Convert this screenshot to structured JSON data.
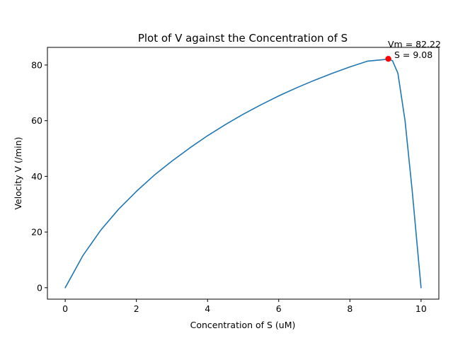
{
  "chart_data": {
    "type": "line",
    "title": "Plot of V against the Concentration of S",
    "xlabel": "Concentration of S (uM)",
    "ylabel": "Velocity V (/min)",
    "xlim": [
      -0.5,
      10.5
    ],
    "ylim": [
      -4.11,
      86.33
    ],
    "xticks": [
      0,
      2,
      4,
      6,
      8,
      10
    ],
    "yticks": [
      0,
      20,
      40,
      60,
      80
    ],
    "grid": false,
    "legend": "none",
    "series": [
      {
        "color": "#1f77b4",
        "x": [
          0,
          0.5,
          1,
          1.5,
          2,
          2.5,
          3,
          3.5,
          4,
          4.5,
          5,
          5.5,
          6,
          6.5,
          7,
          7.5,
          8,
          8.5,
          9,
          9.08,
          9.2,
          9.35,
          9.55,
          9.75,
          10
        ],
        "y": [
          0,
          11.6,
          20.7,
          28.2,
          34.6,
          40.4,
          45.5,
          50.2,
          54.6,
          58.6,
          62.3,
          65.7,
          68.9,
          71.8,
          74.5,
          77.0,
          79.3,
          81.4,
          82.0,
          82.22,
          81.5,
          77.0,
          60.0,
          35.0,
          0
        ]
      }
    ],
    "marker": {
      "x": 9.08,
      "y": 82.22,
      "color": "#ff0000",
      "label_line1": "Vm = 82.22",
      "label_line2": "S = 9.08"
    }
  }
}
